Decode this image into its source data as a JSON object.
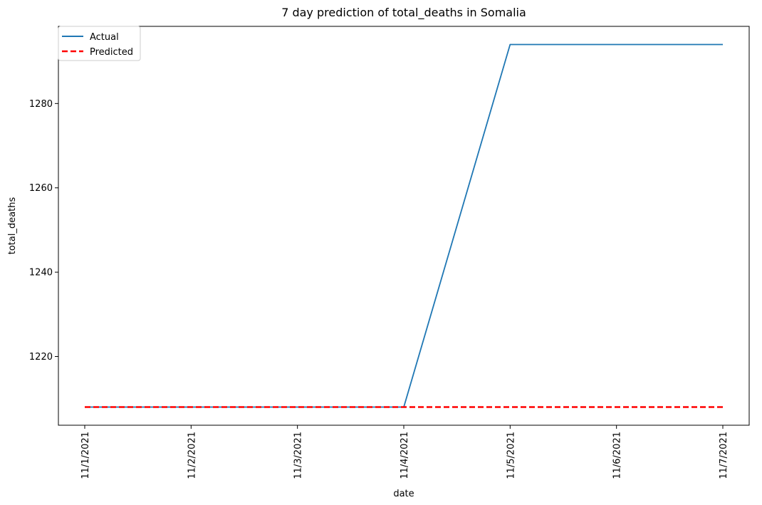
{
  "chart_data": {
    "type": "line",
    "title": "7 day prediction of total_deaths in Somalia",
    "xlabel": "date",
    "ylabel": "total_deaths",
    "categories": [
      "11/1/2021",
      "11/2/2021",
      "11/3/2021",
      "11/4/2021",
      "11/5/2021",
      "11/6/2021",
      "11/7/2021"
    ],
    "series": [
      {
        "name": "Actual",
        "values": [
          1208,
          1208,
          1208,
          1208,
          1294,
          1294,
          1294
        ],
        "color": "#1f77b4",
        "style": "solid"
      },
      {
        "name": "Predicted",
        "values": [
          1208,
          1208,
          1208,
          1208,
          1208,
          1208,
          1208
        ],
        "color": "#ff0000",
        "style": "dashed"
      }
    ],
    "yticks": [
      1220,
      1240,
      1260,
      1280
    ],
    "ylim": [
      1203.7,
      1298.3
    ],
    "grid": false,
    "legend": "top-left"
  }
}
